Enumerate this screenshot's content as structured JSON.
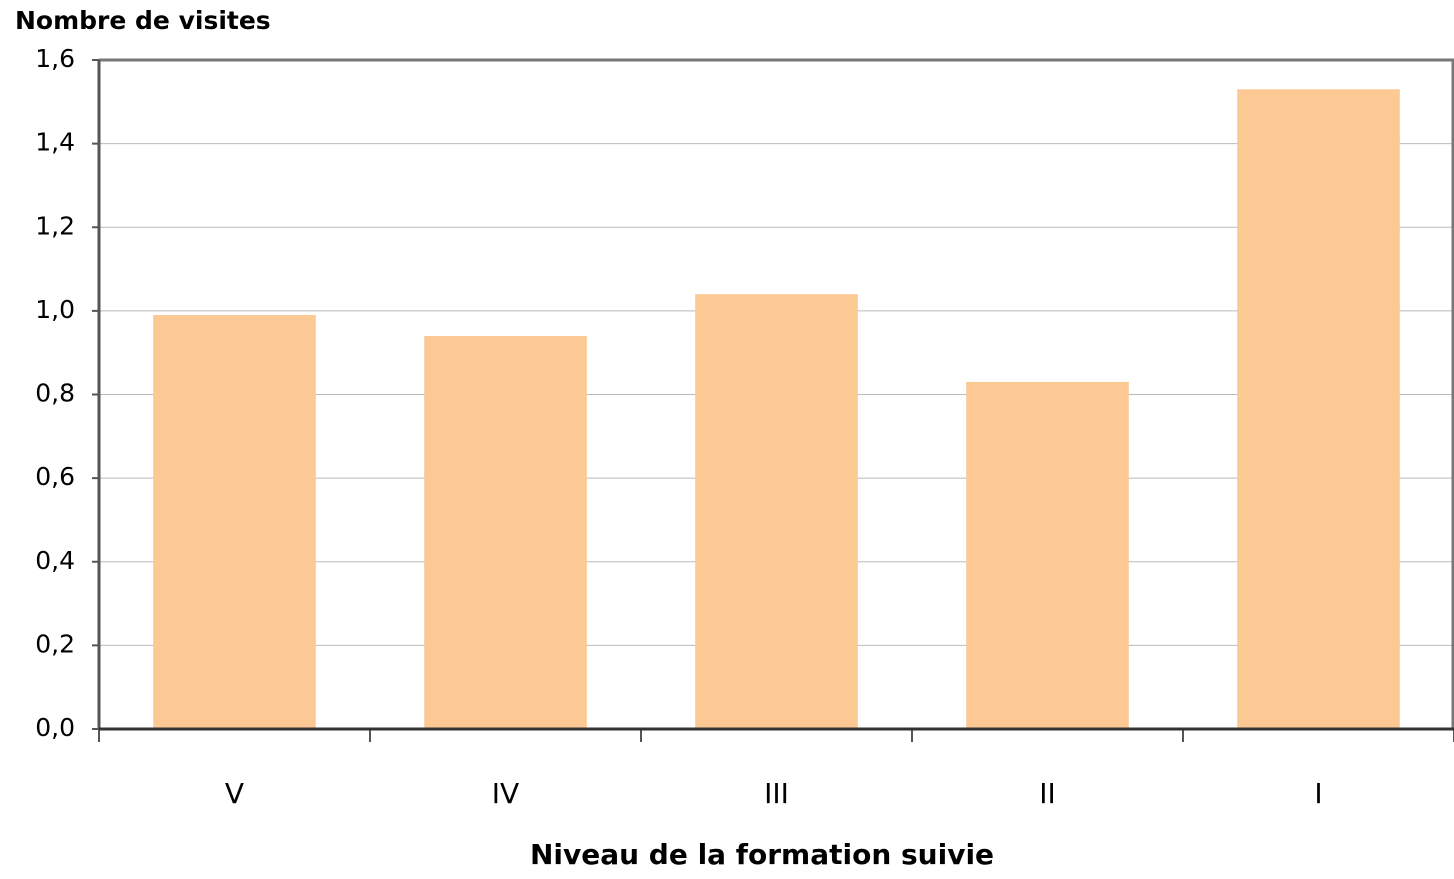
{
  "chart_data": {
    "type": "bar",
    "y_axis_title": "Nombre de visites",
    "x_axis_title": "Niveau de la formation suivie",
    "categories": [
      "V",
      "IV",
      "III",
      "II",
      "I"
    ],
    "values": [
      0.99,
      0.94,
      1.04,
      0.83,
      1.53
    ],
    "color": "#fcc995",
    "ylim": [
      0,
      1.6
    ],
    "yticks": [
      {
        "value": 0,
        "label": "0,0"
      },
      {
        "value": 0.2,
        "label": "0,2"
      },
      {
        "value": 0.4,
        "label": "0,4"
      },
      {
        "value": 0.6,
        "label": "0,6"
      },
      {
        "value": 0.8,
        "label": "0,8"
      },
      {
        "value": 1.0,
        "label": "1,0"
      },
      {
        "value": 1.2,
        "label": "1,2"
      },
      {
        "value": 1.4,
        "label": "1,4"
      },
      {
        "value": 1.6,
        "label": "1,6"
      }
    ],
    "grid": true
  }
}
